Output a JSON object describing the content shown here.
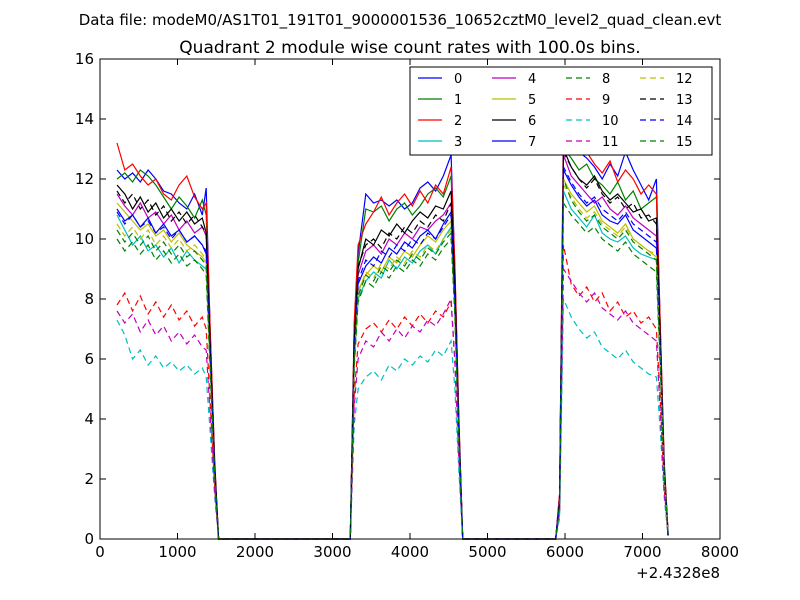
{
  "header": "Data file: modeM0/AS1T01_191T01_9000001536_10652cztM0_level2_quad_clean.evt",
  "chart_data": {
    "type": "line",
    "title": "Quadrant 2 module wise count rates with 100.0s bins.",
    "xlabel": "",
    "ylabel": "",
    "x_offset_label": "+2.4328e8",
    "xlim": [
      0,
      8000
    ],
    "ylim": [
      0,
      16
    ],
    "x_ticks": [
      0,
      1000,
      2000,
      3000,
      4000,
      5000,
      6000,
      7000,
      8000
    ],
    "y_ticks": [
      0,
      2,
      4,
      6,
      8,
      10,
      12,
      14,
      16
    ],
    "grid": false,
    "legend_placement": "top-right",
    "x": [
      220,
      320,
      420,
      520,
      620,
      720,
      820,
      920,
      1020,
      1120,
      1220,
      1320,
      1370,
      1420,
      1480,
      1530,
      3180,
      3230,
      3280,
      3330,
      3430,
      3530,
      3630,
      3730,
      3830,
      3930,
      4030,
      4130,
      4230,
      4330,
      4430,
      4530,
      4580,
      4630,
      4680,
      4730,
      5830,
      5880,
      5930,
      5980,
      6080,
      6180,
      6280,
      6380,
      6480,
      6580,
      6680,
      6780,
      6880,
      6980,
      7080,
      7180,
      7230,
      7280,
      7330
    ],
    "series": [
      {
        "name": "0",
        "color": "#0000ff",
        "dash": "solid",
        "values": [
          12.3,
          12.0,
          12.2,
          11.9,
          12.3,
          12.0,
          11.6,
          11.5,
          11.2,
          11.0,
          11.5,
          10.8,
          11.7,
          7.0,
          2.5,
          0,
          0,
          0,
          7.0,
          9.5,
          11.5,
          11.2,
          11.3,
          11.1,
          11.3,
          11.0,
          11.2,
          11.7,
          11.9,
          11.6,
          12.1,
          12.8,
          9.0,
          4.0,
          0,
          0,
          0,
          0,
          1.5,
          13.5,
          13.0,
          12.9,
          12.7,
          12.4,
          12.0,
          12.5,
          12.1,
          12.9,
          12.3,
          11.8,
          11.3,
          12.0,
          7.0,
          2.5,
          0.2
        ]
      },
      {
        "name": "1",
        "color": "#008000",
        "dash": "solid",
        "values": [
          12.0,
          12.2,
          11.9,
          12.3,
          12.1,
          11.8,
          11.4,
          11.0,
          11.4,
          11.1,
          10.7,
          11.3,
          10.8,
          6.8,
          2.4,
          0,
          0,
          0,
          6.8,
          9.2,
          11.0,
          10.9,
          11.1,
          10.6,
          11.0,
          11.2,
          10.8,
          11.1,
          11.5,
          11.7,
          11.4,
          12.1,
          8.8,
          3.9,
          0,
          0,
          0,
          0,
          1.4,
          13.0,
          12.7,
          12.3,
          12.5,
          12.0,
          11.8,
          11.5,
          11.9,
          11.3,
          11.6,
          11.0,
          11.2,
          11.4,
          6.8,
          2.4,
          0.2
        ]
      },
      {
        "name": "2",
        "color": "#ff0000",
        "dash": "solid",
        "values": [
          13.2,
          12.3,
          12.5,
          12.1,
          11.8,
          12.0,
          11.5,
          11.3,
          11.8,
          12.1,
          11.4,
          11.0,
          11.2,
          7.1,
          2.6,
          0,
          0,
          0,
          7.2,
          9.8,
          10.5,
          10.9,
          11.4,
          10.8,
          11.2,
          11.5,
          11.1,
          11.6,
          11.2,
          11.8,
          11.5,
          12.4,
          9.1,
          4.1,
          0,
          0,
          0,
          0,
          1.5,
          14.0,
          13.2,
          12.8,
          12.9,
          12.5,
          12.2,
          12.6,
          11.9,
          12.3,
          12.0,
          11.5,
          11.8,
          11.5,
          7.1,
          2.6,
          0.2
        ]
      },
      {
        "name": "3",
        "color": "#00bfbf",
        "dash": "solid",
        "values": [
          10.8,
          10.3,
          9.8,
          10.1,
          9.6,
          9.8,
          9.4,
          9.7,
          9.2,
          9.6,
          9.3,
          9.1,
          9.0,
          5.8,
          2.1,
          0,
          0,
          0,
          5.8,
          8.0,
          8.6,
          8.9,
          8.7,
          9.3,
          9.0,
          9.4,
          9.2,
          9.6,
          9.8,
          9.5,
          10.0,
          10.4,
          7.6,
          3.4,
          0,
          0,
          0,
          0,
          1.2,
          11.6,
          11.0,
          10.7,
          10.4,
          10.8,
          10.2,
          10.0,
          9.9,
          10.1,
          9.7,
          9.5,
          9.4,
          9.3,
          5.8,
          2.1,
          0.1
        ]
      },
      {
        "name": "4",
        "color": "#bf00bf",
        "dash": "solid",
        "values": [
          11.5,
          11.1,
          10.8,
          11.2,
          10.7,
          10.9,
          10.5,
          10.8,
          10.3,
          10.6,
          10.2,
          10.4,
          10.1,
          6.4,
          2.3,
          0,
          0,
          0,
          6.4,
          8.8,
          9.6,
          9.8,
          9.5,
          10.0,
          9.8,
          10.2,
          10.0,
          10.4,
          10.3,
          10.6,
          10.8,
          11.2,
          8.2,
          3.7,
          0,
          0,
          0,
          0,
          1.3,
          12.8,
          12.1,
          11.8,
          11.5,
          11.2,
          11.4,
          11.0,
          10.8,
          11.1,
          10.7,
          10.5,
          10.3,
          10.1,
          6.4,
          2.3,
          0.1
        ]
      },
      {
        "name": "5",
        "color": "#bfbf00",
        "dash": "solid",
        "values": [
          11.2,
          10.9,
          10.6,
          10.3,
          10.5,
          10.1,
          10.3,
          9.9,
          10.2,
          9.8,
          9.6,
          9.4,
          9.2,
          6.0,
          2.2,
          0,
          0,
          0,
          6.0,
          8.3,
          8.8,
          9.1,
          8.9,
          9.4,
          9.2,
          9.6,
          9.4,
          9.8,
          10.1,
          9.9,
          10.3,
          10.6,
          7.8,
          3.5,
          0,
          0,
          0,
          0,
          1.2,
          12.0,
          11.5,
          11.2,
          10.9,
          11.1,
          10.6,
          10.4,
          10.2,
          10.5,
          10.0,
          9.8,
          9.6,
          9.4,
          6.0,
          2.2,
          0.1
        ]
      },
      {
        "name": "6",
        "color": "#000000",
        "dash": "solid",
        "values": [
          11.8,
          11.5,
          11.0,
          11.4,
          10.9,
          11.2,
          10.7,
          11.0,
          10.6,
          10.9,
          10.5,
          10.7,
          10.2,
          6.5,
          2.4,
          0,
          0,
          0,
          6.6,
          9.0,
          10.0,
          9.8,
          10.3,
          10.1,
          10.5,
          10.2,
          10.6,
          10.9,
          10.7,
          11.1,
          11.0,
          11.6,
          8.5,
          3.8,
          0,
          0,
          0,
          0,
          1.3,
          13.0,
          12.4,
          12.0,
          11.8,
          12.1,
          11.6,
          11.3,
          11.5,
          11.2,
          10.9,
          11.0,
          10.6,
          10.7,
          6.6,
          2.4,
          0.1
        ]
      },
      {
        "name": "7",
        "color": "#0000ff",
        "dash": "solid",
        "values": [
          11.0,
          10.6,
          10.8,
          10.4,
          10.7,
          10.2,
          10.5,
          10.1,
          10.3,
          9.9,
          10.1,
          9.8,
          9.5,
          6.1,
          2.2,
          0,
          0,
          0,
          6.2,
          8.5,
          9.1,
          9.4,
          9.2,
          9.7,
          9.5,
          9.9,
          9.7,
          10.1,
          10.3,
          10.0,
          10.5,
          10.9,
          8.0,
          3.6,
          0,
          0,
          0,
          0,
          1.2,
          12.3,
          11.8,
          11.4,
          11.1,
          11.3,
          10.8,
          10.6,
          10.5,
          10.8,
          10.3,
          10.1,
          9.9,
          9.7,
          6.1,
          2.2,
          0.1
        ]
      },
      {
        "name": "8",
        "color": "#008000",
        "dash": "dashed",
        "values": [
          10.0,
          9.6,
          9.9,
          9.5,
          9.8,
          9.3,
          9.6,
          9.2,
          9.5,
          9.1,
          9.3,
          9.0,
          8.8,
          5.6,
          2.0,
          0,
          0,
          0,
          5.7,
          7.9,
          8.6,
          8.4,
          8.9,
          8.7,
          9.1,
          8.9,
          9.3,
          9.1,
          9.5,
          9.3,
          9.7,
          10.0,
          7.4,
          3.3,
          0,
          0,
          0,
          0,
          1.1,
          11.2,
          10.8,
          10.5,
          10.2,
          10.4,
          10.0,
          9.8,
          9.6,
          9.9,
          9.5,
          9.3,
          9.1,
          8.9,
          5.6,
          2.0,
          0.1
        ]
      },
      {
        "name": "9",
        "color": "#ff0000",
        "dash": "dashed",
        "values": [
          7.8,
          8.2,
          7.6,
          8.1,
          7.5,
          7.9,
          7.4,
          7.8,
          7.3,
          7.6,
          7.1,
          7.4,
          7.0,
          4.6,
          1.7,
          0,
          0,
          0,
          4.8,
          6.5,
          7.0,
          7.2,
          6.9,
          7.3,
          7.0,
          7.4,
          7.1,
          7.5,
          7.2,
          7.6,
          7.4,
          7.9,
          5.9,
          2.7,
          0,
          0,
          0,
          0,
          0.9,
          9.8,
          8.5,
          8.1,
          8.4,
          7.9,
          8.2,
          7.6,
          7.9,
          7.4,
          7.6,
          7.2,
          7.4,
          7.0,
          4.6,
          1.7,
          0.1
        ]
      },
      {
        "name": "10",
        "color": "#00bfbf",
        "dash": "dashed",
        "values": [
          7.3,
          6.8,
          6.0,
          6.3,
          5.8,
          6.1,
          5.7,
          5.9,
          5.6,
          5.8,
          5.5,
          5.7,
          5.4,
          3.6,
          1.4,
          0,
          0,
          0,
          3.8,
          5.0,
          5.4,
          5.6,
          5.3,
          5.8,
          5.6,
          6.0,
          5.8,
          6.1,
          5.9,
          6.3,
          6.1,
          6.6,
          5.0,
          2.3,
          0,
          0,
          0,
          0,
          0.7,
          8.0,
          7.4,
          7.0,
          6.7,
          6.9,
          6.4,
          6.2,
          6.0,
          6.3,
          5.9,
          5.7,
          5.5,
          5.4,
          3.6,
          1.4,
          0.1
        ]
      },
      {
        "name": "11",
        "color": "#bf00bf",
        "dash": "dashed",
        "values": [
          7.6,
          7.2,
          7.5,
          6.9,
          7.3,
          6.8,
          7.1,
          6.6,
          6.9,
          6.5,
          6.8,
          6.4,
          6.3,
          4.2,
          1.6,
          0,
          0,
          0,
          4.4,
          6.0,
          6.6,
          6.4,
          6.9,
          6.6,
          7.0,
          6.7,
          7.1,
          6.9,
          7.3,
          7.1,
          7.5,
          8.0,
          5.9,
          2.7,
          0,
          0,
          0,
          0,
          0.9,
          9.0,
          8.6,
          8.2,
          7.9,
          8.2,
          7.7,
          7.5,
          7.3,
          7.6,
          7.2,
          7.0,
          6.8,
          6.6,
          4.2,
          1.6,
          0.1
        ]
      },
      {
        "name": "12",
        "color": "#bfbf00",
        "dash": "dashed",
        "values": [
          10.5,
          10.1,
          10.4,
          10.0,
          10.3,
          9.8,
          10.1,
          9.7,
          10.0,
          9.6,
          9.8,
          9.5,
          9.3,
          5.9,
          2.1,
          0,
          0,
          0,
          6.0,
          8.2,
          8.9,
          8.7,
          9.2,
          9.0,
          9.4,
          9.2,
          9.6,
          9.4,
          9.8,
          9.6,
          10.0,
          10.3,
          7.6,
          3.4,
          0,
          0,
          0,
          0,
          1.2,
          11.8,
          11.4,
          11.0,
          10.7,
          10.9,
          10.5,
          10.3,
          10.1,
          10.4,
          10.0,
          9.8,
          9.6,
          9.5,
          5.9,
          2.1,
          0.1
        ]
      },
      {
        "name": "13",
        "color": "#000000",
        "dash": "dashed",
        "values": [
          11.6,
          11.2,
          11.5,
          11.0,
          11.3,
          10.8,
          11.1,
          10.6,
          10.9,
          10.5,
          10.8,
          10.4,
          10.2,
          6.5,
          2.4,
          0,
          0,
          0,
          6.6,
          9.1,
          9.8,
          10.0,
          9.7,
          10.2,
          10.0,
          10.4,
          10.2,
          10.6,
          10.4,
          10.8,
          10.6,
          11.2,
          8.3,
          3.7,
          0,
          0,
          0,
          0,
          1.3,
          12.9,
          12.4,
          12.0,
          11.7,
          12.0,
          11.5,
          11.2,
          11.4,
          11.0,
          11.2,
          10.7,
          10.8,
          10.5,
          6.5,
          2.4,
          0.1
        ]
      },
      {
        "name": "14",
        "color": "#0000ff",
        "dash": "dashed",
        "values": [
          10.9,
          10.5,
          10.8,
          10.4,
          10.6,
          10.2,
          10.4,
          10.0,
          10.3,
          9.9,
          10.1,
          9.8,
          9.6,
          6.1,
          2.2,
          0,
          0,
          0,
          6.2,
          8.6,
          9.3,
          9.1,
          9.6,
          9.4,
          9.8,
          9.6,
          10.0,
          9.8,
          10.2,
          10.0,
          10.4,
          10.8,
          7.9,
          3.6,
          0,
          0,
          0,
          0,
          1.2,
          12.4,
          11.9,
          11.5,
          11.2,
          11.4,
          11.0,
          10.8,
          10.6,
          10.9,
          10.5,
          10.3,
          10.1,
          9.9,
          6.1,
          2.2,
          0.1
        ]
      },
      {
        "name": "15",
        "color": "#008000",
        "dash": "dashed",
        "values": [
          10.3,
          9.9,
          10.2,
          9.8,
          10.1,
          9.6,
          9.9,
          9.5,
          9.8,
          9.4,
          9.6,
          9.3,
          9.1,
          5.8,
          2.1,
          0,
          0,
          0,
          5.9,
          8.1,
          8.8,
          8.6,
          9.1,
          8.9,
          9.3,
          9.1,
          9.5,
          9.3,
          9.7,
          9.5,
          9.9,
          10.2,
          7.5,
          3.4,
          0,
          0,
          0,
          0,
          1.1,
          12.0,
          11.3,
          10.9,
          10.6,
          10.8,
          10.4,
          10.2,
          10.0,
          10.3,
          9.9,
          9.7,
          9.5,
          9.3,
          5.8,
          2.1,
          0.1
        ]
      }
    ]
  }
}
